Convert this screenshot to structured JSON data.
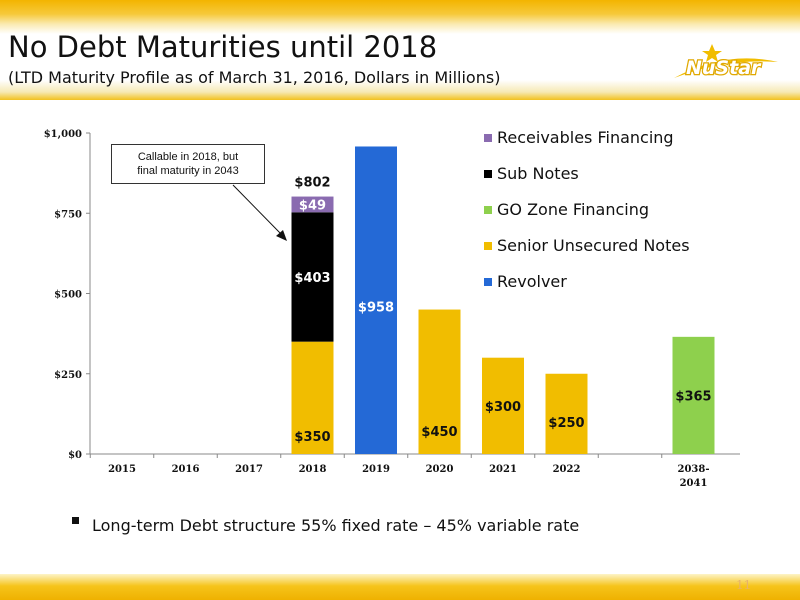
{
  "slide": {
    "title": "No Debt Maturities until 2018",
    "subtitle": "(LTD Maturity Profile as of March 31, 2016, Dollars in Millions)",
    "logo_text": "NuStar",
    "bullet": "Long-term Debt structure 55% fixed rate – 45% variable rate",
    "page_number": "11"
  },
  "callout": {
    "line1": "Callable in 2018, but",
    "line2": "final maturity in 2043"
  },
  "chart_data": {
    "type": "bar",
    "stacked": true,
    "categories": [
      "2015",
      "2016",
      "2017",
      "2018",
      "2019",
      "2020",
      "2021",
      "2022",
      "",
      "2038-2041"
    ],
    "category_label_lines": [
      [
        "2015"
      ],
      [
        "2016"
      ],
      [
        "2017"
      ],
      [
        "2018"
      ],
      [
        "2019"
      ],
      [
        "2020"
      ],
      [
        "2021"
      ],
      [
        "2022"
      ],
      [
        ""
      ],
      [
        "2038-",
        "2041"
      ]
    ],
    "y_ticks": [
      "$0",
      "$250",
      "$500",
      "$750",
      "$1,000"
    ],
    "ylim": [
      0,
      1000
    ],
    "grid": false,
    "legend_position": "right",
    "series": [
      {
        "name": "Revolver",
        "color": "#2469d6",
        "label_color": "#ffffff",
        "values": [
          0,
          0,
          0,
          0,
          958,
          0,
          0,
          0,
          0,
          0
        ],
        "labels": [
          "",
          "",
          "",
          "",
          "$958",
          "",
          "",
          "",
          "",
          ""
        ]
      },
      {
        "name": "Senior Unsecured Notes",
        "color": "#f1bd00",
        "label_color": "#111111",
        "values": [
          0,
          0,
          0,
          350,
          0,
          450,
          300,
          250,
          0,
          0
        ],
        "labels": [
          "",
          "",
          "",
          "$350",
          "",
          "$450",
          "$300",
          "$250",
          "",
          ""
        ]
      },
      {
        "name": "GO Zone Financing",
        "color": "#8ed04d",
        "label_color": "#111111",
        "values": [
          0,
          0,
          0,
          0,
          0,
          0,
          0,
          0,
          0,
          365
        ],
        "labels": [
          "",
          "",
          "",
          "",
          "",
          "",
          "",
          "",
          "",
          "$365"
        ]
      },
      {
        "name": "Sub Notes",
        "color": "#000000",
        "label_color": "#ffffff",
        "values": [
          0,
          0,
          0,
          403,
          0,
          0,
          0,
          0,
          0,
          0
        ],
        "labels": [
          "",
          "",
          "",
          "$403",
          "",
          "",
          "",
          "",
          "",
          ""
        ]
      },
      {
        "name": "Receivables Financing",
        "color": "#8a6bb0",
        "label_color": "#ffffff",
        "values": [
          0,
          0,
          0,
          49,
          0,
          0,
          0,
          0,
          0,
          0
        ],
        "labels": [
          "",
          "",
          "",
          "$49",
          "",
          "",
          "",
          "",
          "",
          ""
        ]
      }
    ],
    "legend_order": [
      "Receivables Financing",
      "Sub Notes",
      "GO Zone Financing",
      "Senior Unsecured Notes",
      "Revolver"
    ],
    "totals": [
      "",
      "",
      "",
      "$802",
      "",
      "",
      "",
      "",
      "",
      ""
    ],
    "annotation": "Callable in 2018, but final maturity in 2043"
  }
}
